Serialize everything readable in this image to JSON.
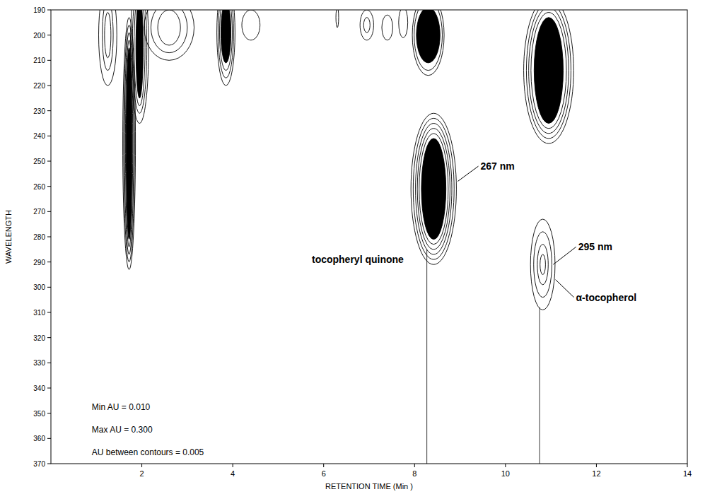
{
  "chart_data": {
    "type": "contour",
    "x_label": "RETENTION TIME (Min )",
    "y_label": "WAVELENGTH",
    "xlim": [
      0,
      14
    ],
    "xticks": [
      2,
      4,
      6,
      8,
      10,
      12,
      14
    ],
    "ylim": [
      190,
      370
    ],
    "yticks": [
      190,
      200,
      210,
      220,
      230,
      240,
      250,
      260,
      270,
      280,
      290,
      300,
      310,
      320,
      330,
      340,
      350,
      360,
      370
    ],
    "color": "#000000",
    "peaks": [
      {
        "rt": 1.72,
        "wavelength": 243,
        "rings": [
          [
            0.14,
            50
          ],
          [
            0.12,
            47
          ],
          [
            0.1,
            44
          ],
          [
            0.08,
            41
          ]
        ],
        "core": [
          0.065,
          38
        ]
      },
      {
        "rt": 1.95,
        "wavelength": 205,
        "rings": [
          [
            0.2,
            30
          ],
          [
            0.16,
            26
          ],
          [
            0.12,
            23
          ]
        ],
        "core": [
          0.08,
          20
        ]
      },
      {
        "rt": 1.25,
        "wavelength": 200,
        "rings": [
          [
            0.2,
            20
          ],
          [
            0.12,
            14
          ],
          [
            0.07,
            9
          ]
        ]
      },
      {
        "rt": 2.6,
        "wavelength": 197,
        "rings": [
          [
            0.55,
            13
          ],
          [
            0.4,
            10
          ],
          [
            0.25,
            7
          ]
        ]
      },
      {
        "rt": 3.85,
        "wavelength": 199,
        "rings": [
          [
            0.2,
            21
          ],
          [
            0.17,
            18
          ],
          [
            0.14,
            15
          ]
        ],
        "core": [
          0.11,
          12
        ]
      },
      {
        "rt": 4.4,
        "wavelength": 196,
        "rings": [
          [
            0.2,
            6
          ]
        ]
      },
      {
        "rt": 6.3,
        "wavelength": 193,
        "rings": [
          [
            0.03,
            4
          ]
        ]
      },
      {
        "rt": 6.95,
        "wavelength": 196,
        "rings": [
          [
            0.15,
            6
          ],
          [
            0.07,
            3
          ]
        ]
      },
      {
        "rt": 7.4,
        "wavelength": 197,
        "rings": [
          [
            0.12,
            5
          ]
        ]
      },
      {
        "rt": 7.75,
        "wavelength": 195,
        "rings": [
          [
            0.1,
            6
          ]
        ]
      },
      {
        "rt": 8.3,
        "wavelength": 200,
        "rings": [
          [
            0.35,
            16
          ],
          [
            0.31,
            14
          ]
        ],
        "core": [
          0.26,
          11
        ]
      },
      {
        "rt": 8.42,
        "wavelength": 261,
        "rings": [
          [
            0.5,
            30
          ],
          [
            0.45,
            28
          ],
          [
            0.4,
            26
          ],
          [
            0.36,
            24
          ],
          [
            0.32,
            22
          ]
        ],
        "core": [
          0.27,
          20
        ]
      },
      {
        "rt": 10.95,
        "wavelength": 214,
        "rings": [
          [
            0.55,
            29
          ],
          [
            0.49,
            27
          ],
          [
            0.44,
            25
          ],
          [
            0.39,
            23
          ]
        ],
        "core": [
          0.32,
          21
        ]
      },
      {
        "rt": 10.82,
        "wavelength": 291,
        "rings": [
          [
            0.27,
            18
          ],
          [
            0.2,
            13
          ],
          [
            0.12,
            8
          ],
          [
            0.06,
            4
          ]
        ]
      }
    ],
    "markers": [
      {
        "rt": 8.27,
        "wavelength_from": 285,
        "wavelength_to": 370
      },
      {
        "rt": 10.75,
        "wavelength_from": 308,
        "wavelength_to": 370
      }
    ],
    "annotations": [
      {
        "text": "267 nm",
        "rt": 9.45,
        "wavelength": 252,
        "arrow_rt": 8.95,
        "arrow_wavelength": 258
      },
      {
        "text": "295 nm",
        "rt": 11.6,
        "wavelength": 284,
        "arrow_rt": 11.05,
        "arrow_wavelength": 291
      },
      {
        "text": "tocopheryl quinone",
        "rt": 6.75,
        "wavelength": 289
      },
      {
        "text": "α-tocopherol",
        "rt": 11.55,
        "wavelength": 304,
        "arrow_rt": 11.1,
        "arrow_wavelength": 297
      }
    ],
    "notes": [
      "Min AU  =  0.010",
      "Max AU  =  0.300",
      "AU between contours  =  0.005"
    ]
  }
}
